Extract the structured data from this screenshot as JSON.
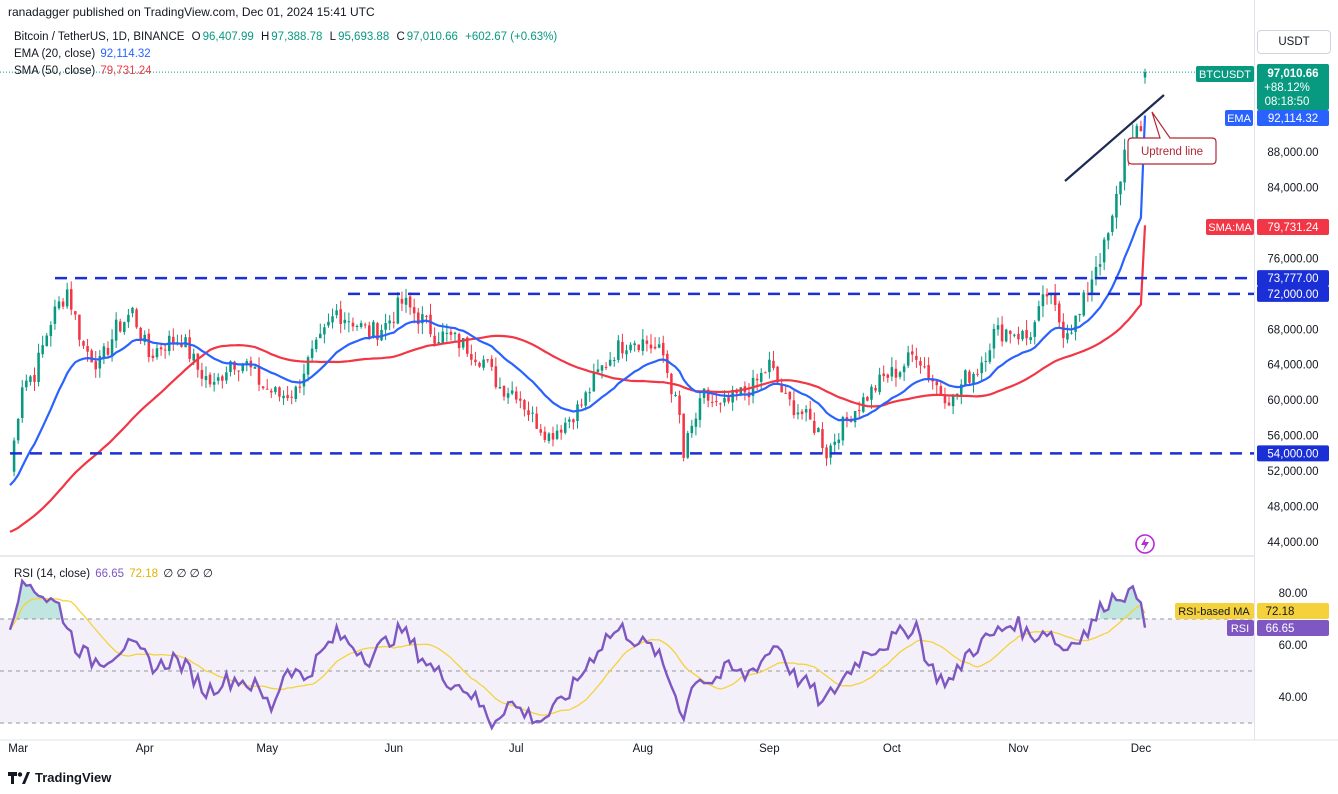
{
  "publisher": "ranadagger published on TradingView.com, Dec 01, 2024 15:41 UTC",
  "brand": "TradingView",
  "currency_button": "USDT",
  "legend": {
    "symbol": "Bitcoin / TetherUS, 1D, BINANCE",
    "open_label": "O",
    "open": "96,407.99",
    "high_label": "H",
    "high": "97,388.78",
    "low_label": "L",
    "low": "95,693.88",
    "close_label": "C",
    "close": "97,010.66",
    "change": "+602.67 (+0.63%)",
    "ema_label": "EMA (20, close)",
    "ema_value": "92,114.32",
    "sma_label": "SMA (50, close)",
    "sma_value": "79,731.24",
    "rsi_label": "RSI (14, close)",
    "rsi_value": "66.65",
    "rsi_ma_value": "72.18",
    "rsi_extra": "∅ ∅ ∅ ∅"
  },
  "badges": {
    "ticker": "BTCUSDT",
    "price": "97,010.66",
    "change_pct": "+88.12%",
    "countdown": "08:18:50",
    "ema_name": "EMA",
    "ema_value": "92,114.32",
    "sma_name": "SMA:MA",
    "sma_value": "79,731.24",
    "rsi_ma_name": "RSI-based MA",
    "rsi_ma_value": "72.18",
    "rsi_name": "RSI",
    "rsi_value": "66.65"
  },
  "annotation": "Uptrend line",
  "colors": {
    "up": "#089981",
    "down": "#f23645",
    "ema": "#2962ff",
    "sma": "#f23645",
    "level": "#1b2fd6",
    "rsi": "#7e57c2",
    "rsi_ma": "#f5d23b",
    "trendline": "#1e2a52",
    "annotation_border": "#b22833"
  },
  "chart_data": [
    {
      "type": "candlestick",
      "title": "Bitcoin / TetherUS, 1D, BINANCE",
      "x_tick_labels": [
        "Mar",
        "Apr",
        "May",
        "Jun",
        "Jul",
        "Aug",
        "Sep",
        "Oct",
        "Nov",
        "Dec"
      ],
      "y_tick_labels": [
        "88,000.00",
        "84,000.00",
        "76,000.00",
        "68,000.00",
        "64,000.00",
        "60,000.00",
        "56,000.00",
        "52,000.00",
        "48,000.00",
        "44,000.00"
      ],
      "ylim": [
        42000,
        100000
      ],
      "levels": [
        {
          "label": "73,777.00",
          "value": 73777
        },
        {
          "label": "72,000.00",
          "value": 72000
        },
        {
          "label": "54,000.00",
          "value": 54000
        }
      ],
      "trendline_label": "Uptrend line",
      "price_path": {
        "start": "2024-02-28",
        "days": 278,
        "anchors": [
          [
            0,
            52000
          ],
          [
            3,
            62000
          ],
          [
            6,
            63000
          ],
          [
            10,
            69000
          ],
          [
            14,
            72500
          ],
          [
            18,
            66000
          ],
          [
            22,
            64000
          ],
          [
            26,
            68000
          ],
          [
            30,
            70000
          ],
          [
            34,
            65000
          ],
          [
            38,
            66500
          ],
          [
            42,
            67000
          ],
          [
            46,
            63500
          ],
          [
            50,
            61500
          ],
          [
            54,
            64500
          ],
          [
            58,
            64000
          ],
          [
            62,
            61500
          ],
          [
            66,
            60500
          ],
          [
            70,
            61000
          ],
          [
            72,
            63500
          ],
          [
            76,
            66500
          ],
          [
            80,
            70000
          ],
          [
            84,
            69000
          ],
          [
            88,
            67500
          ],
          [
            92,
            68500
          ],
          [
            96,
            71000
          ],
          [
            100,
            69500
          ],
          [
            104,
            67500
          ],
          [
            108,
            67000
          ],
          [
            112,
            66000
          ],
          [
            116,
            64500
          ],
          [
            120,
            61500
          ],
          [
            124,
            61000
          ],
          [
            128,
            58000
          ],
          [
            132,
            56000
          ],
          [
            136,
            57500
          ],
          [
            140,
            59500
          ],
          [
            144,
            63000
          ],
          [
            148,
            65500
          ],
          [
            152,
            67000
          ],
          [
            156,
            66500
          ],
          [
            160,
            65000
          ],
          [
            164,
            58000
          ],
          [
            165,
            53500
          ],
          [
            166,
            55500
          ],
          [
            170,
            60500
          ],
          [
            174,
            59000
          ],
          [
            178,
            60500
          ],
          [
            182,
            61500
          ],
          [
            186,
            64000
          ],
          [
            190,
            60000
          ],
          [
            194,
            58500
          ],
          [
            198,
            56500
          ],
          [
            200,
            54000
          ],
          [
            203,
            56500
          ],
          [
            206,
            58500
          ],
          [
            210,
            60500
          ],
          [
            214,
            62500
          ],
          [
            218,
            63500
          ],
          [
            222,
            65500
          ],
          [
            225,
            63000
          ],
          [
            228,
            61000
          ],
          [
            231,
            60000
          ],
          [
            234,
            62500
          ],
          [
            237,
            63500
          ],
          [
            241,
            67500
          ],
          [
            245,
            68000
          ],
          [
            249,
            67000
          ],
          [
            251,
            68500
          ],
          [
            254,
            72000
          ],
          [
            256,
            70000
          ],
          [
            258,
            68000
          ],
          [
            260,
            68500
          ],
          [
            262,
            69500
          ],
          [
            264,
            72500
          ],
          [
            266,
            75500
          ],
          [
            268,
            77000
          ],
          [
            270,
            80000
          ],
          [
            273,
            88000
          ],
          [
            276,
            89500
          ],
          [
            279,
            91000
          ],
          [
            283,
            92500
          ],
          [
            286,
            94000
          ],
          [
            288,
            98000
          ],
          [
            290,
            97500
          ],
          [
            292,
            95000
          ],
          [
            294,
            93000
          ],
          [
            296,
            96500
          ],
          [
            298,
            97500
          ],
          [
            299,
            96400
          ],
          [
            300,
            97010
          ]
        ]
      },
      "series": [
        {
          "name": "BTCUSDT",
          "last": 97010.66,
          "open": 96407.99,
          "high": 97388.78,
          "low": 95693.88
        },
        {
          "name": "EMA (20, close)",
          "last": 92114.32
        },
        {
          "name": "SMA (50, close)",
          "last": 79731.24
        }
      ]
    },
    {
      "type": "line",
      "title": "RSI (14, close)",
      "y_tick_labels": [
        "80.00",
        "60.00",
        "40.00"
      ],
      "bands": [
        30,
        50,
        70
      ],
      "ylim": [
        25,
        92
      ],
      "series": [
        {
          "name": "RSI",
          "last": 66.65,
          "anchors": [
            [
              0,
              68
            ],
            [
              2,
              80
            ],
            [
              5,
              84
            ],
            [
              8,
              79
            ],
            [
              12,
              75
            ],
            [
              16,
              60
            ],
            [
              20,
              54
            ],
            [
              24,
              55
            ],
            [
              28,
              60
            ],
            [
              32,
              57
            ],
            [
              36,
              51
            ],
            [
              40,
              55
            ],
            [
              44,
              50
            ],
            [
              48,
              42
            ],
            [
              52,
              46
            ],
            [
              56,
              47
            ],
            [
              60,
              44
            ],
            [
              64,
              36
            ],
            [
              68,
              52
            ],
            [
              72,
              47
            ],
            [
              76,
              56
            ],
            [
              80,
              64
            ],
            [
              84,
              60
            ],
            [
              88,
              55
            ],
            [
              92,
              61
            ],
            [
              96,
              66
            ],
            [
              100,
              57
            ],
            [
              104,
              50
            ],
            [
              108,
              46
            ],
            [
              112,
              43
            ],
            [
              116,
              35
            ],
            [
              118,
              30
            ],
            [
              122,
              38
            ],
            [
              126,
              34
            ],
            [
              130,
              31
            ],
            [
              134,
              36
            ],
            [
              138,
              44
            ],
            [
              142,
              54
            ],
            [
              146,
              63
            ],
            [
              150,
              66
            ],
            [
              154,
              61
            ],
            [
              158,
              58
            ],
            [
              162,
              45
            ],
            [
              165,
              33
            ],
            [
              168,
              48
            ],
            [
              172,
              46
            ],
            [
              176,
              51
            ],
            [
              180,
              48
            ],
            [
              184,
              54
            ],
            [
              188,
              61
            ],
            [
              192,
              48
            ],
            [
              196,
              44
            ],
            [
              199,
              37
            ],
            [
              202,
              43
            ],
            [
              206,
              51
            ],
            [
              210,
              58
            ],
            [
              214,
              60
            ],
            [
              218,
              64
            ],
            [
              222,
              68
            ],
            [
              225,
              52
            ],
            [
              228,
              47
            ],
            [
              231,
              46
            ],
            [
              234,
              56
            ],
            [
              238,
              61
            ],
            [
              242,
              65
            ],
            [
              246,
              69
            ],
            [
              250,
              63
            ],
            [
              254,
              66
            ],
            [
              258,
              58
            ],
            [
              262,
              64
            ],
            [
              264,
              65
            ],
            [
              268,
              76
            ],
            [
              272,
              80
            ],
            [
              276,
              79
            ],
            [
              280,
              81
            ],
            [
              284,
              83
            ],
            [
              288,
              77
            ],
            [
              290,
              66
            ],
            [
              292,
              62
            ],
            [
              296,
              67
            ],
            [
              300,
              66.65
            ]
          ]
        },
        {
          "name": "RSI-based MA",
          "last": 72.18
        }
      ]
    }
  ]
}
